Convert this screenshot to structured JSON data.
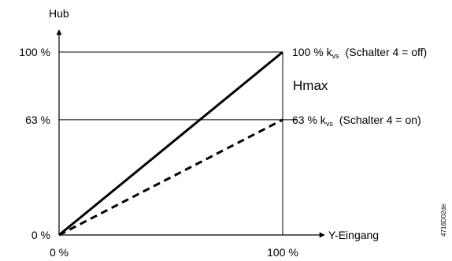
{
  "chart_data": {
    "type": "line",
    "ylabel": "Hub",
    "xlabel": "Y-Eingang",
    "xlim": [
      0,
      100
    ],
    "ylim": [
      0,
      100
    ],
    "x_ticks": [
      "0 %",
      "100 %"
    ],
    "y_ticks": [
      "0 %",
      "63 %",
      "100 %"
    ],
    "reference_lines_y": [
      100,
      63
    ],
    "series": [
      {
        "style": "solid",
        "x": [
          0,
          100
        ],
        "y": [
          0,
          100
        ],
        "label_main": "100 % k",
        "label_sub": "vs",
        "label_note": "(Schalter 4 = off)"
      },
      {
        "style": "dashed",
        "x": [
          0,
          100
        ],
        "y": [
          0,
          63
        ],
        "label_main": "63 % k",
        "label_sub": "vs",
        "label_note": "(Schalter 4 = on)"
      }
    ],
    "annotation": "Hmax",
    "figure_code": "4716D02de"
  }
}
